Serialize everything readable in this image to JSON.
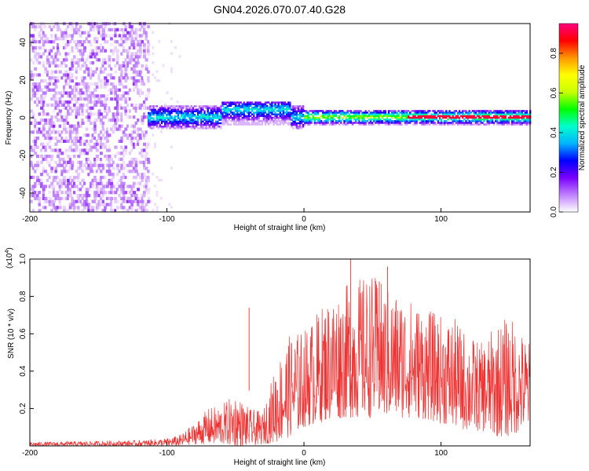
{
  "title": "GN04.2026.070.07.40.G28",
  "chart_data": [
    {
      "type": "heatmap",
      "xlabel": "Height of straight line (km)",
      "ylabel": "Frequency (Hz)",
      "xlim": [
        -200,
        165
      ],
      "ylim": [
        -50,
        50
      ],
      "x_ticks": [
        -200,
        -100,
        0,
        100
      ],
      "x_tick_labels": [
        "-200",
        "-100",
        "0",
        "100"
      ],
      "y_ticks": [
        -40,
        -20,
        0,
        20,
        40
      ],
      "y_tick_labels": [
        "-40",
        "-20",
        "0",
        "20",
        "40"
      ],
      "colorbar": {
        "label": "Normalized spectral amplitude",
        "range": [
          0,
          0.95
        ],
        "ticks": [
          0.0,
          0.2,
          0.4,
          0.6,
          0.8
        ],
        "tick_labels": [
          "0.0",
          "0.2",
          "0.4",
          "0.6",
          "0.8"
        ],
        "colors": [
          "#ffffff",
          "#c080ff",
          "#7a00ff",
          "#0000ff",
          "#00b4ff",
          "#00ffcc",
          "#00ff00",
          "#c8ff00",
          "#ffff00",
          "#ff9600",
          "#ff0000",
          "#ff0080"
        ]
      },
      "regions": [
        {
          "x_range": [
            -200,
            -114
          ],
          "freq_range": [
            -50,
            50
          ],
          "amplitude": 0.06,
          "note": "broadband noise"
        },
        {
          "x_range": [
            -114,
            -95
          ],
          "freq_range": [
            -6,
            6
          ],
          "amplitude": 0.25
        },
        {
          "x_range": [
            -95,
            0
          ],
          "freq_range": [
            -5,
            5
          ],
          "amplitude": 0.3
        },
        {
          "x_range": [
            0,
            165
          ],
          "freq_range": [
            -3,
            3
          ],
          "amplitude": 0.5
        },
        {
          "x_range": [
            75,
            165
          ],
          "freq_range": [
            -0.5,
            0.5
          ],
          "amplitude": 0.92
        }
      ]
    },
    {
      "type": "line",
      "xlabel": "Height of straight line (km)",
      "ylabel": "SNR (10 * v/v)",
      "y_scale_label": "(x10",
      "y_scale_exp": "4",
      "xlim": [
        -200,
        165
      ],
      "ylim": [
        0,
        1.0
      ],
      "x_ticks": [
        -200,
        -100,
        0,
        100
      ],
      "x_tick_labels": [
        "-200",
        "-100",
        "0",
        "100"
      ],
      "y_ticks": [
        0.2,
        0.4,
        0.6,
        0.8,
        1.0
      ],
      "y_tick_labels": [
        "0.2",
        "0.4",
        "0.6",
        "0.8",
        "1.0"
      ],
      "color": "#ee3333",
      "envelope": {
        "x": [
          -200,
          -120,
          -100,
          -90,
          -80,
          -70,
          -60,
          -50,
          -40,
          -30,
          -20,
          -10,
          0,
          10,
          20,
          30,
          40,
          50,
          60,
          70,
          80,
          90,
          100,
          110,
          120,
          130,
          140,
          150,
          165
        ],
        "y_min": [
          0.0,
          0.0,
          0.0,
          0.0,
          0.01,
          0.01,
          0.01,
          0.0,
          0.0,
          0.01,
          0.02,
          0.05,
          0.1,
          0.12,
          0.14,
          0.15,
          0.15,
          0.15,
          0.15,
          0.15,
          0.15,
          0.14,
          0.12,
          0.1,
          0.08,
          0.08,
          0.05,
          0.05,
          0.1
        ],
        "y_max": [
          0.02,
          0.03,
          0.04,
          0.06,
          0.12,
          0.2,
          0.22,
          0.28,
          0.2,
          0.18,
          0.45,
          0.6,
          0.62,
          0.72,
          0.82,
          0.86,
          0.9,
          0.92,
          0.85,
          0.82,
          0.78,
          0.73,
          0.7,
          0.68,
          0.6,
          0.55,
          0.65,
          0.7,
          0.55
        ]
      },
      "peaks": [
        {
          "x": -40,
          "y": 0.74
        },
        {
          "x": 34,
          "y": 1.0
        },
        {
          "x": 55,
          "y": 0.88
        },
        {
          "x": 61,
          "y": 0.96
        }
      ]
    }
  ]
}
